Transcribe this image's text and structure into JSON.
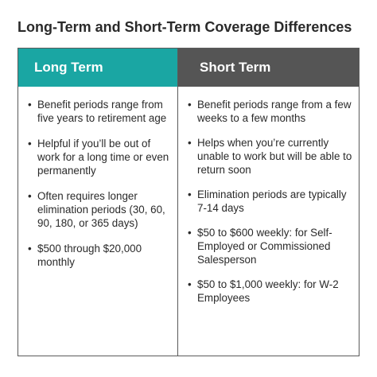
{
  "title": "Long-Term and Short-Term Coverage Differences",
  "columns": [
    {
      "heading": "Long Term",
      "header_color": "#1aa6a3",
      "items": [
        "Benefit periods range from five years to retirement age",
        "Helpful if you’ll be out of work for a long time or even permanently",
        "Often requires longer elimination periods (30, 60, 90, 180, or 365 days)",
        "$500 through $20,000 monthly"
      ]
    },
    {
      "heading": "Short Term",
      "header_color": "#555555",
      "items": [
        "Benefit periods range from a few weeks to a few months",
        "Helps when you’re currently unable to work but will be able to return soon",
        "Elimination periods are typically 7-14 days",
        "$50 to $600 weekly: for Self-Employed or Commissioned Salesperson",
        "$50 to $1,000 weekly: for W-2 Employees"
      ]
    }
  ]
}
